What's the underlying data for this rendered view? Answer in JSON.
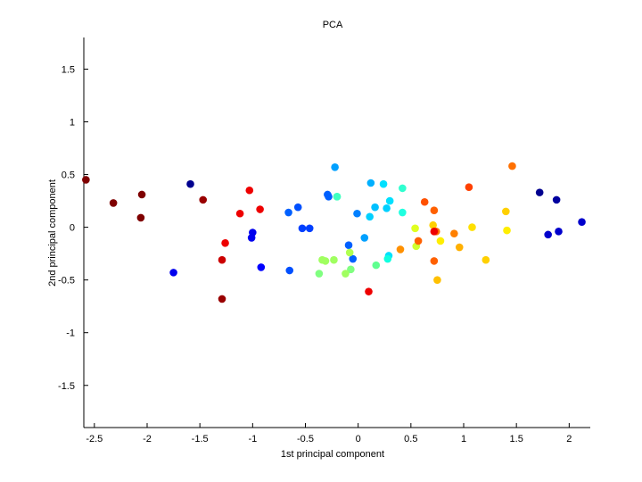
{
  "chart_data": {
    "type": "scatter",
    "title": "PCA",
    "xlabel": "1st principal component",
    "ylabel": "2nd principal component",
    "xlim": [
      -2.6,
      2.2
    ],
    "ylim": [
      -1.9,
      1.8
    ],
    "xticks": [
      "-2.5",
      "-2",
      "-1.5",
      "-1",
      "-0.5",
      "0",
      "0.5",
      "1",
      "1.5",
      "2"
    ],
    "yticks": [
      "-1.5",
      "-1",
      "-0.5",
      "0",
      "0.5",
      "1",
      "1.5"
    ],
    "grid": false,
    "legend": "none",
    "points": [
      {
        "x": -2.58,
        "y": 0.45,
        "color": "#7f0000"
      },
      {
        "x": -2.32,
        "y": 0.23,
        "color": "#7f0000"
      },
      {
        "x": -2.05,
        "y": 0.31,
        "color": "#7f0000"
      },
      {
        "x": -2.06,
        "y": 0.09,
        "color": "#7f0000"
      },
      {
        "x": -1.47,
        "y": 0.26,
        "color": "#990000"
      },
      {
        "x": -1.29,
        "y": -0.68,
        "color": "#990000"
      },
      {
        "x": -1.29,
        "y": -0.31,
        "color": "#cc0000"
      },
      {
        "x": -1.26,
        "y": -0.15,
        "color": "#ee0000"
      },
      {
        "x": -1.12,
        "y": 0.13,
        "color": "#ee0000"
      },
      {
        "x": -1.03,
        "y": 0.35,
        "color": "#ee0000"
      },
      {
        "x": -0.93,
        "y": 0.17,
        "color": "#ee0000"
      },
      {
        "x": 0.1,
        "y": -0.61,
        "color": "#ee0000"
      },
      {
        "x": -1.59,
        "y": 0.41,
        "color": "#00008f"
      },
      {
        "x": -1.75,
        "y": -0.43,
        "color": "#0000ee"
      },
      {
        "x": -1.0,
        "y": -0.05,
        "color": "#0000ee"
      },
      {
        "x": -1.01,
        "y": -0.1,
        "color": "#0000ee"
      },
      {
        "x": -0.92,
        "y": -0.38,
        "color": "#0000ff"
      },
      {
        "x": 1.72,
        "y": 0.33,
        "color": "#00008f"
      },
      {
        "x": 1.88,
        "y": 0.26,
        "color": "#00009f"
      },
      {
        "x": 1.8,
        "y": -0.07,
        "color": "#0000cc"
      },
      {
        "x": 1.9,
        "y": -0.04,
        "color": "#0000cc"
      },
      {
        "x": 2.12,
        "y": 0.05,
        "color": "#0000cc"
      },
      {
        "x": -0.65,
        "y": -0.41,
        "color": "#0050ff"
      },
      {
        "x": -0.66,
        "y": 0.14,
        "color": "#0060ff"
      },
      {
        "x": -0.57,
        "y": 0.19,
        "color": "#0050ff"
      },
      {
        "x": -0.53,
        "y": -0.01,
        "color": "#0040ff"
      },
      {
        "x": -0.46,
        "y": -0.01,
        "color": "#0040ff"
      },
      {
        "x": -0.29,
        "y": 0.31,
        "color": "#0060ff"
      },
      {
        "x": -0.28,
        "y": 0.29,
        "color": "#0060ff"
      },
      {
        "x": -0.22,
        "y": 0.57,
        "color": "#00a0ff"
      },
      {
        "x": -0.09,
        "y": -0.17,
        "color": "#0060ff"
      },
      {
        "x": -0.05,
        "y": -0.3,
        "color": "#0060ff"
      },
      {
        "x": -0.01,
        "y": 0.13,
        "color": "#0080ff"
      },
      {
        "x": 0.06,
        "y": -0.1,
        "color": "#00a0ff"
      },
      {
        "x": 0.11,
        "y": 0.1,
        "color": "#00d0ff"
      },
      {
        "x": 0.12,
        "y": 0.42,
        "color": "#00b0ff"
      },
      {
        "x": 0.16,
        "y": 0.19,
        "color": "#00c0ff"
      },
      {
        "x": 0.24,
        "y": 0.41,
        "color": "#00e0ff"
      },
      {
        "x": 0.27,
        "y": 0.18,
        "color": "#00d0ff"
      },
      {
        "x": 0.3,
        "y": 0.25,
        "color": "#00e0ff"
      },
      {
        "x": 0.29,
        "y": -0.27,
        "color": "#00e0ff"
      },
      {
        "x": 0.28,
        "y": -0.3,
        "color": "#10ffe0"
      },
      {
        "x": -0.2,
        "y": 0.29,
        "color": "#50ffb0"
      },
      {
        "x": -0.2,
        "y": 0.29,
        "color": "#40ffc0"
      },
      {
        "x": 0.42,
        "y": 0.37,
        "color": "#30ffd0"
      },
      {
        "x": 0.42,
        "y": 0.14,
        "color": "#20ffe0"
      },
      {
        "x": 0.17,
        "y": -0.36,
        "color": "#60ff90"
      },
      {
        "x": -0.07,
        "y": -0.4,
        "color": "#80ff80"
      },
      {
        "x": -0.37,
        "y": -0.44,
        "color": "#80ff80"
      },
      {
        "x": -0.34,
        "y": -0.31,
        "color": "#a0ff60"
      },
      {
        "x": -0.31,
        "y": -0.32,
        "color": "#a0ff60"
      },
      {
        "x": -0.23,
        "y": -0.31,
        "color": "#a0ff60"
      },
      {
        "x": -0.12,
        "y": -0.44,
        "color": "#a0ff60"
      },
      {
        "x": -0.08,
        "y": -0.24,
        "color": "#b0ff50"
      },
      {
        "x": 0.55,
        "y": -0.18,
        "color": "#d0ff30"
      },
      {
        "x": 0.54,
        "y": -0.01,
        "color": "#e0ff20"
      },
      {
        "x": 0.78,
        "y": -0.13,
        "color": "#ffee00"
      },
      {
        "x": 0.71,
        "y": 0.02,
        "color": "#ffd000"
      },
      {
        "x": 0.75,
        "y": -0.5,
        "color": "#ffc000"
      },
      {
        "x": 0.96,
        "y": -0.19,
        "color": "#ffb000"
      },
      {
        "x": 1.08,
        "y": 0.0,
        "color": "#ffe000"
      },
      {
        "x": 1.21,
        "y": -0.31,
        "color": "#ffd000"
      },
      {
        "x": 1.4,
        "y": 0.15,
        "color": "#ffd000"
      },
      {
        "x": 1.41,
        "y": -0.03,
        "color": "#ffee00"
      },
      {
        "x": 0.4,
        "y": -0.21,
        "color": "#ff9000"
      },
      {
        "x": 0.57,
        "y": -0.13,
        "color": "#ff6000"
      },
      {
        "x": 0.63,
        "y": 0.24,
        "color": "#ff5000"
      },
      {
        "x": 0.72,
        "y": 0.16,
        "color": "#ff6000"
      },
      {
        "x": 0.74,
        "y": -0.04,
        "color": "#ff7000"
      },
      {
        "x": 0.72,
        "y": -0.32,
        "color": "#ff6000"
      },
      {
        "x": 0.72,
        "y": -0.04,
        "color": "#ee0000"
      },
      {
        "x": 0.91,
        "y": -0.06,
        "color": "#ff8000"
      },
      {
        "x": 1.05,
        "y": 0.38,
        "color": "#ff4000"
      },
      {
        "x": 1.46,
        "y": 0.58,
        "color": "#ff7000"
      }
    ]
  }
}
